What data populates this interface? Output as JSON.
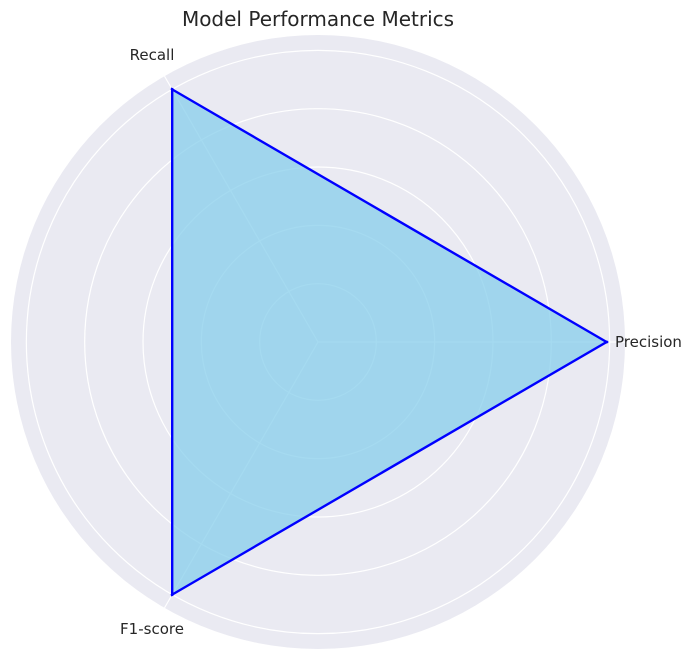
{
  "chart_data": {
    "type": "radar",
    "title": "Model Performance Metrics",
    "categories": [
      "Precision",
      "Recall",
      "F1-score"
    ],
    "values": [
      0.94,
      0.95,
      0.95
    ],
    "rlim": [
      0,
      1.0
    ],
    "rticks": [
      0.2,
      0.4,
      0.6,
      0.8,
      1.0
    ],
    "grid": true,
    "colors": {
      "background": "#eaeaf2",
      "grid": "#ffffff",
      "fill": "#87ceeb",
      "line": "#0000ff",
      "text": "#262626"
    }
  }
}
